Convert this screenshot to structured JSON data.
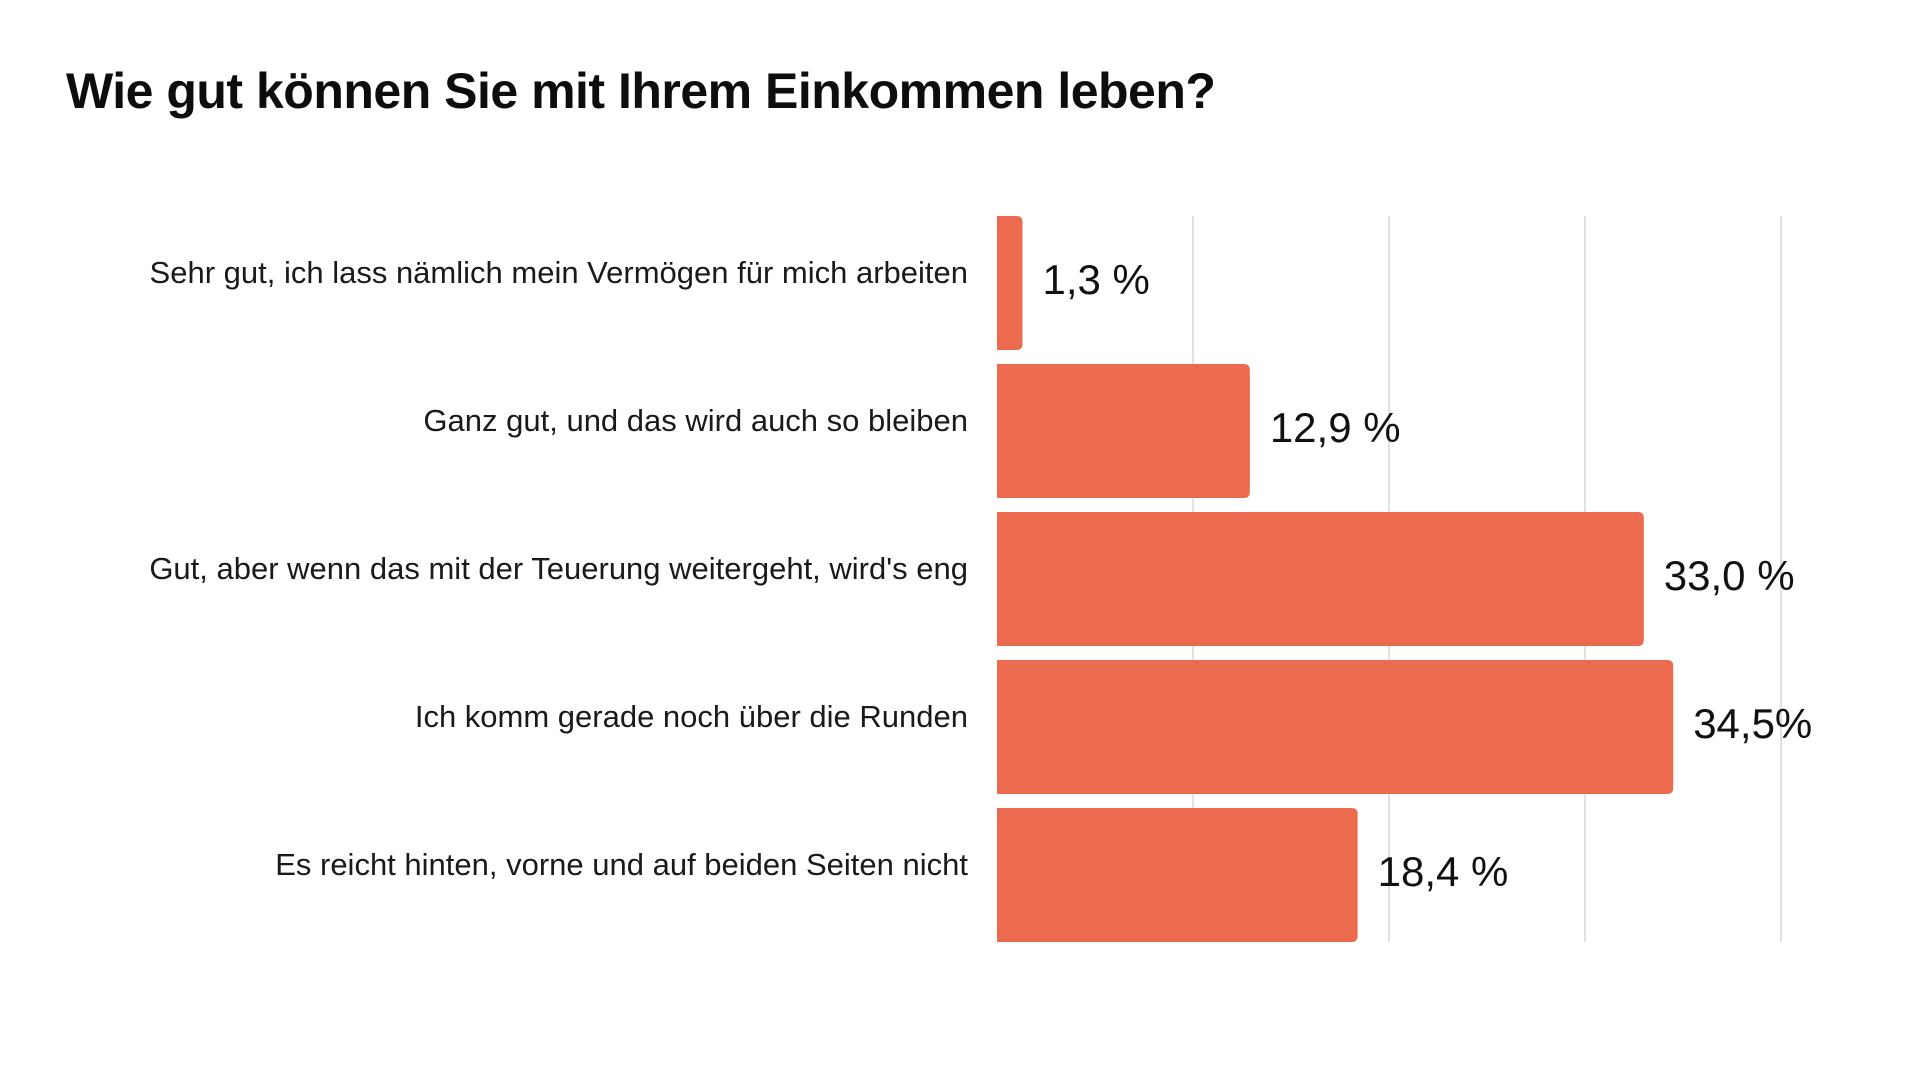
{
  "colors": {
    "bar": "#EC6A4D",
    "grid": "#D9D9D9",
    "background": "#FFFFFF",
    "text": "#111111"
  },
  "chart_data": {
    "type": "bar",
    "orientation": "horizontal",
    "title": "Wie gut können Sie mit Ihrem Einkommen leben?",
    "categories": [
      "Sehr gut, ich lass nämlich mein Vermögen für mich arbeiten",
      "Ganz gut, und das wird auch so bleiben",
      "Gut, aber wenn das mit der Teuerung weitergeht, wird's eng",
      "Ich komm gerade noch über die Runden",
      "Es reicht hinten, vorne und auf beiden Seiten nicht"
    ],
    "values": [
      1.3,
      12.9,
      33.0,
      34.5,
      18.4
    ],
    "value_labels": [
      "1,3 %",
      "12,9 %",
      "33,0 %",
      "34,5%",
      "18,4 %"
    ],
    "xlim": [
      0,
      40
    ],
    "grid": true,
    "unit": "%"
  }
}
